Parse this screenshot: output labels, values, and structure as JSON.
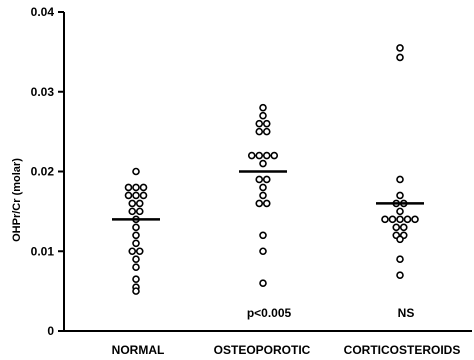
{
  "chart_data": {
    "type": "scatter",
    "ylabel": "OHPr/Cr  (molar)",
    "ylim": [
      0,
      0.04
    ],
    "yticks": [
      "0",
      "0.01",
      "0.02",
      "0.03",
      "0.04"
    ],
    "ytick_values": [
      0,
      0.01,
      0.02,
      0.03,
      0.04
    ],
    "categories": [
      "NORMAL",
      "OSTEOPOROTIC",
      "CORTICOSTEROIDS"
    ],
    "series": [
      {
        "category": "NORMAL",
        "median": 0.014,
        "values": [
          0.02,
          0.018,
          0.018,
          0.018,
          0.017,
          0.017,
          0.017,
          0.016,
          0.016,
          0.015,
          0.015,
          0.014,
          0.013,
          0.012,
          0.011,
          0.01,
          0.01,
          0.009,
          0.008,
          0.0065,
          0.0055,
          0.005
        ]
      },
      {
        "category": "OSTEOPOROTIC",
        "median": 0.02,
        "values": [
          0.028,
          0.027,
          0.026,
          0.026,
          0.025,
          0.025,
          0.022,
          0.022,
          0.022,
          0.022,
          0.021,
          0.019,
          0.019,
          0.018,
          0.017,
          0.016,
          0.016,
          0.012,
          0.01,
          0.006
        ]
      },
      {
        "category": "CORTICOSTEROIDS",
        "median": 0.016,
        "values": [
          0.0355,
          0.0343,
          0.019,
          0.017,
          0.016,
          0.016,
          0.015,
          0.014,
          0.014,
          0.014,
          0.014,
          0.014,
          0.013,
          0.013,
          0.012,
          0.012,
          0.0115,
          0.009,
          0.007
        ]
      }
    ],
    "annotations": [
      {
        "category": "OSTEOPOROTIC",
        "text": "p<0.005"
      },
      {
        "category": "CORTICOSTEROIDS",
        "text": "NS"
      }
    ]
  }
}
